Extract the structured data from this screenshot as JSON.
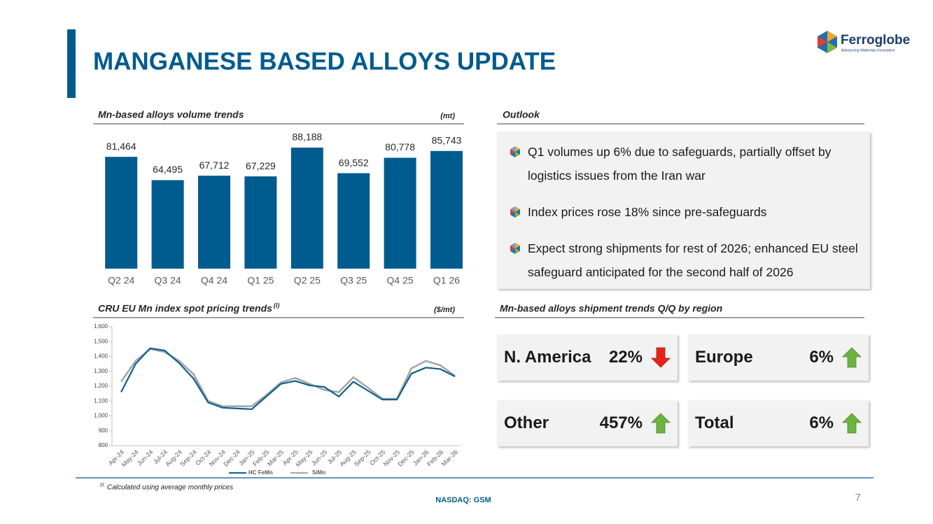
{
  "header": {
    "title": "MANGANESE BASED ALLOYS UPDATE",
    "logo": "Ferroglobe",
    "tagline": "Advancing Materials Innovation"
  },
  "chart_data": [
    {
      "type": "bar",
      "title": "Mn-based alloys volume trends",
      "unit": "(mt)",
      "categories": [
        "Q2 24",
        "Q3 24",
        "Q4 24",
        "Q1 25",
        "Q2 25",
        "Q3 25",
        "Q4 25",
        "Q1 26"
      ],
      "values": [
        81464,
        64495,
        67712,
        67229,
        88188,
        69552,
        80778,
        85743
      ],
      "value_labels": [
        "81,464",
        "64,495",
        "67,712",
        "67,229",
        "88,188",
        "69,552",
        "80,778",
        "85,743"
      ],
      "color": "#005b8e"
    },
    {
      "type": "line",
      "title": "CRU EU Mn index spot pricing trends",
      "title_note": "(i)",
      "unit": "($/mt)",
      "categories": [
        "Apr-24",
        "May-24",
        "Jun-24",
        "Jul-24",
        "Aug-24",
        "Sep-24",
        "Oct-24",
        "Nov-24",
        "Dec-24",
        "Jan-25",
        "Feb-25",
        "Mar-25",
        "Apr-25",
        "May-25",
        "Jun-25",
        "Jul-25",
        "Aug-25",
        "Sep-25",
        "Oct-25",
        "Nov-25",
        "Dec-25",
        "Jan-26",
        "Feb-26",
        "Mar-26"
      ],
      "series": [
        {
          "name": "HC FeMn",
          "color": "#0b5f8f",
          "values": [
            1160,
            1350,
            1455,
            1440,
            1355,
            1250,
            1090,
            1055,
            1050,
            1045,
            1130,
            1215,
            1235,
            1205,
            1195,
            1130,
            1230,
            1170,
            1110,
            1110,
            1285,
            1325,
            1315,
            1265
          ]
        },
        {
          "name": "SiMn",
          "color": "#a6a6a6",
          "values": [
            1230,
            1370,
            1450,
            1430,
            1370,
            1280,
            1100,
            1065,
            1065,
            1065,
            1140,
            1225,
            1255,
            1215,
            1175,
            1160,
            1260,
            1190,
            1115,
            1115,
            1320,
            1370,
            1340,
            1270
          ]
        }
      ],
      "ylim": [
        800,
        1600
      ],
      "yticks": [
        800,
        900,
        {
          "value": 1000,
          "label": "1,000"
        },
        {
          "value": 1100,
          "label": "1,100"
        },
        {
          "value": 1200,
          "label": "1,200"
        },
        {
          "value": 1300,
          "label": "1,300"
        },
        {
          "value": 1400,
          "label": "1,400"
        },
        {
          "value": 1500,
          "label": "1,500"
        },
        {
          "value": 1600,
          "label": "1,600"
        }
      ],
      "legend": "bottom"
    }
  ],
  "outlook": {
    "title": "Outlook",
    "bullets": [
      "Q1 volumes up 6% due to safeguards, partially offset by logistics issues from the Iran war",
      "Index prices rose 18% since pre-safeguards",
      "Expect strong shipments for rest of 2026; enhanced EU steel safeguard anticipated for the second half of 2026"
    ]
  },
  "regions": {
    "title": "Mn-based alloys shipment trends Q/Q by region",
    "items": [
      {
        "name": "N. America",
        "change": "22%",
        "trend": "down"
      },
      {
        "name": "Europe",
        "change": "6%",
        "trend": "up"
      },
      {
        "name": "Other",
        "change": "457%",
        "trend": "up"
      },
      {
        "name": "Total",
        "change": "6%",
        "trend": "up"
      }
    ]
  },
  "footer": {
    "note_marker": "(i)",
    "note": "Calculated using average monthly prices",
    "ticker": "NASDAQ: GSM",
    "page": 7
  }
}
